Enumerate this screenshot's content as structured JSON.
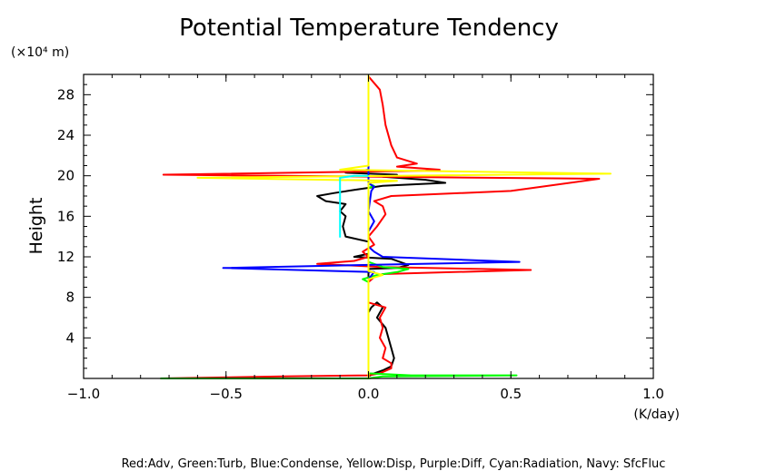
{
  "chart_data": {
    "type": "line",
    "title": "Potential Temperature Tendency",
    "y_unit_label": "(×10⁴ m)",
    "ylabel": "Height",
    "x_unit_label": "(K/day)",
    "footer": "Red:Adv, Green:Turb, Blue:Condense, Yellow:Disp, Purple:Diff, Cyan:Radiation, Navy: SfcFluc",
    "xlim": [
      -1.0,
      1.0
    ],
    "ylim": [
      0,
      30
    ],
    "x_ticks": [
      {
        "value": -1.0,
        "label": "−1.0"
      },
      {
        "value": -0.5,
        "label": "−0.5"
      },
      {
        "value": 0.0,
        "label": "0.0"
      },
      {
        "value": 0.5,
        "label": "0.5"
      },
      {
        "value": 1.0,
        "label": "1.0"
      }
    ],
    "y_ticks": [
      {
        "value": 4,
        "label": "4"
      },
      {
        "value": 8,
        "label": "8"
      },
      {
        "value": 12,
        "label": "12"
      },
      {
        "value": 16,
        "label": "16"
      },
      {
        "value": 20,
        "label": "20"
      },
      {
        "value": 24,
        "label": "24"
      },
      {
        "value": 28,
        "label": "28"
      }
    ],
    "series": [
      {
        "key": "navy",
        "color": "#000080",
        "points": [
          [
            0.0,
            0
          ],
          [
            0.0,
            30
          ]
        ]
      },
      {
        "key": "black",
        "color": "#000000",
        "points": [
          [
            0.0,
            0
          ],
          [
            0.0,
            6.5
          ],
          [
            0.01,
            7.0
          ],
          [
            0.03,
            7.5
          ],
          [
            0.05,
            7.0
          ],
          [
            0.03,
            6.0
          ],
          [
            0.06,
            5.0
          ],
          [
            0.08,
            3.0
          ],
          [
            0.09,
            2.0
          ],
          [
            0.08,
            1.2
          ],
          [
            0.05,
            0.8
          ],
          [
            0.02,
            0.5
          ],
          [
            0.0,
            0.2
          ],
          [
            0.0,
            10.8
          ],
          [
            0.1,
            10.9
          ],
          [
            0.14,
            11.2
          ],
          [
            0.08,
            11.8
          ],
          [
            -0.05,
            12.0
          ],
          [
            0.0,
            12.3
          ],
          [
            0.0,
            13.5
          ],
          [
            -0.08,
            14.0
          ],
          [
            -0.09,
            15.0
          ],
          [
            -0.08,
            16.0
          ],
          [
            -0.1,
            16.5
          ],
          [
            -0.08,
            17.2
          ],
          [
            -0.15,
            17.5
          ],
          [
            -0.18,
            18.0
          ],
          [
            -0.12,
            18.3
          ],
          [
            -0.05,
            18.6
          ],
          [
            0.05,
            19.0
          ],
          [
            0.27,
            19.3
          ],
          [
            0.2,
            19.6
          ],
          [
            0.05,
            19.9
          ],
          [
            0.1,
            20.1
          ],
          [
            -0.08,
            20.3
          ],
          [
            0.0,
            20.6
          ],
          [
            0.0,
            30
          ]
        ]
      },
      {
        "key": "red",
        "color": "#ff0000",
        "points": [
          [
            -0.73,
            0.0
          ],
          [
            -0.3,
            0.2
          ],
          [
            0.0,
            0.3
          ],
          [
            0.04,
            0.5
          ],
          [
            0.08,
            1.0
          ],
          [
            0.08,
            1.5
          ],
          [
            0.05,
            2.0
          ],
          [
            0.06,
            3.0
          ],
          [
            0.04,
            4.0
          ],
          [
            0.05,
            5.0
          ],
          [
            0.04,
            6.0
          ],
          [
            0.06,
            7.0
          ],
          [
            0.0,
            7.5
          ],
          [
            0.0,
            9.5
          ],
          [
            0.02,
            10.0
          ],
          [
            0.05,
            10.3
          ],
          [
            0.3,
            10.5
          ],
          [
            0.57,
            10.7
          ],
          [
            0.4,
            10.8
          ],
          [
            0.05,
            11.0
          ],
          [
            -0.18,
            11.3
          ],
          [
            -0.05,
            11.6
          ],
          [
            0.0,
            12.0
          ],
          [
            -0.02,
            12.5
          ],
          [
            0.02,
            13.2
          ],
          [
            0.0,
            14.0
          ],
          [
            0.03,
            15.0
          ],
          [
            0.06,
            16.2
          ],
          [
            0.05,
            17.0
          ],
          [
            0.02,
            17.5
          ],
          [
            0.08,
            18.0
          ],
          [
            0.5,
            18.5
          ],
          [
            0.81,
            19.7
          ],
          [
            -0.72,
            20.1
          ],
          [
            0.2,
            20.5
          ],
          [
            0.25,
            20.6
          ],
          [
            0.1,
            20.9
          ],
          [
            0.17,
            21.2
          ],
          [
            0.1,
            21.8
          ],
          [
            0.08,
            23.0
          ],
          [
            0.06,
            25.0
          ],
          [
            0.05,
            27.0
          ],
          [
            0.04,
            28.5
          ],
          [
            0.0,
            29.8
          ]
        ]
      },
      {
        "key": "green",
        "color": "#00ff00",
        "points": [
          [
            -0.73,
            0.0
          ],
          [
            0.0,
            0.0
          ],
          [
            0.05,
            0.2
          ],
          [
            0.52,
            0.3
          ],
          [
            0.15,
            0.3
          ],
          [
            0.0,
            0.5
          ],
          [
            0.0,
            9.5
          ],
          [
            -0.02,
            9.8
          ],
          [
            0.03,
            10.2
          ],
          [
            0.1,
            10.5
          ],
          [
            0.14,
            10.8
          ],
          [
            0.05,
            11.0
          ],
          [
            0.0,
            11.5
          ],
          [
            0.0,
            18.8
          ],
          [
            0.02,
            19.0
          ],
          [
            0.0,
            19.2
          ],
          [
            0.0,
            30
          ]
        ]
      },
      {
        "key": "blue",
        "color": "#0000ff",
        "points": [
          [
            0.0,
            0
          ],
          [
            0.0,
            9.8
          ],
          [
            0.02,
            10.5
          ],
          [
            -0.51,
            10.9
          ],
          [
            0.0,
            11.2
          ],
          [
            0.53,
            11.5
          ],
          [
            0.05,
            12.0
          ],
          [
            0.02,
            12.5
          ],
          [
            0.0,
            13.0
          ],
          [
            0.0,
            14.5
          ],
          [
            0.02,
            15.5
          ],
          [
            0.0,
            16.5
          ],
          [
            0.01,
            18.5
          ],
          [
            0.02,
            18.9
          ],
          [
            0.0,
            19.3
          ],
          [
            0.0,
            30
          ]
        ]
      },
      {
        "key": "yellow",
        "color": "#ffff00",
        "points": [
          [
            0.0,
            0
          ],
          [
            0.0,
            9.8
          ],
          [
            0.05,
            10.2
          ],
          [
            0.0,
            10.6
          ],
          [
            0.0,
            19.3
          ],
          [
            0.1,
            19.5
          ],
          [
            -0.6,
            19.8
          ],
          [
            0.85,
            20.2
          ],
          [
            -0.1,
            20.6
          ],
          [
            0.0,
            21.0
          ],
          [
            0.0,
            30
          ]
        ]
      },
      {
        "key": "cyan",
        "color": "#00ffff",
        "points": [
          [
            -0.1,
            13.9
          ],
          [
            -0.1,
            19.8
          ],
          [
            -0.05,
            20.0
          ],
          [
            0.0,
            20.0
          ]
        ]
      }
    ]
  }
}
